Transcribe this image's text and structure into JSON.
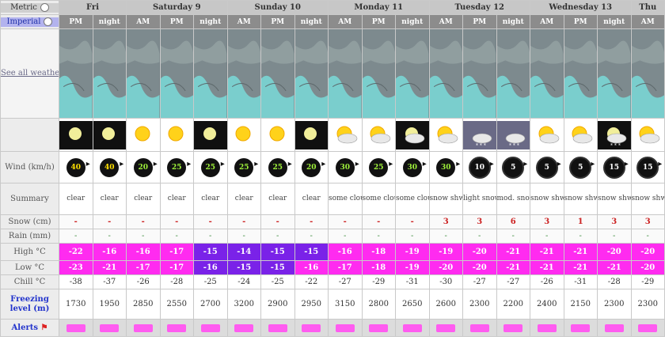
{
  "units": {
    "metric_label": "Metric",
    "imperial_label": "Imperial"
  },
  "days": [
    {
      "name": "Fri",
      "span": 2
    },
    {
      "name": "Saturday 9",
      "span": 3
    },
    {
      "name": "Sunday 10",
      "span": 3
    },
    {
      "name": "Monday 11",
      "span": 3
    },
    {
      "name": "Tuesday 12",
      "span": 3
    },
    {
      "name": "Wednesday 13",
      "span": 3
    },
    {
      "name": "Thu",
      "span": 1
    }
  ],
  "periods": [
    "PM",
    "night",
    "AM",
    "PM",
    "night",
    "AM",
    "PM",
    "night",
    "AM",
    "PM",
    "night",
    "AM",
    "PM",
    "night",
    "AM",
    "PM",
    "night",
    "AM"
  ],
  "see_all_maps": "See all weather maps",
  "labels": {
    "wind": "Wind (km/h)",
    "summary": "Summary",
    "snow": "Snow (cm)",
    "rain": "Rain (mm)",
    "high": "High °C",
    "low": "Low °C",
    "chill": "Chill °C",
    "freezing": "Freezing level (m)",
    "footer": "Alerts"
  },
  "icons": [
    "moon-icon",
    "moon-icon",
    "sun-icon",
    "sun-icon",
    "moon-icon",
    "sun-icon",
    "sun-icon",
    "moon-icon",
    "sun-cloud-icon",
    "sun-cloud-icon",
    "moon-cloud-icon",
    "sun-cloud-snow-icon",
    "cloud-snow-icon",
    "cloud-snow-icon",
    "sun-cloud-snow-icon",
    "sun-cloud-snow-icon",
    "moon-cloud-snow-icon",
    "sun-cloud-snow-icon"
  ],
  "wind": [
    "40",
    "40",
    "20",
    "25",
    "25",
    "25",
    "25",
    "20",
    "30",
    "25",
    "30",
    "30",
    "10",
    "5",
    "5",
    "5",
    "15",
    "15"
  ],
  "summary": [
    "clear",
    "clear",
    "clear",
    "clear",
    "clear",
    "clear",
    "clear",
    "clear",
    "some clouds",
    "some clouds",
    "some clouds",
    "snow shwrs",
    "light snow",
    "mod. snow",
    "snow shwrs",
    "snow shwrs",
    "snow shwrs",
    "snow shwrs"
  ],
  "snow": [
    "-",
    "-",
    "-",
    "-",
    "-",
    "-",
    "-",
    "-",
    "-",
    "-",
    "-",
    "3",
    "3",
    "6",
    "3",
    "1",
    "3",
    "3"
  ],
  "rain": [
    "-",
    "-",
    "-",
    "-",
    "-",
    "-",
    "-",
    "-",
    "-",
    "-",
    "-",
    "-",
    "-",
    "-",
    "-",
    "-",
    "-",
    "-"
  ],
  "high": [
    "-22",
    "-16",
    "-16",
    "-17",
    "-15",
    "-14",
    "-15",
    "-15",
    "-16",
    "-18",
    "-19",
    "-19",
    "-20",
    "-21",
    "-21",
    "-21",
    "-20",
    "-20"
  ],
  "low": [
    "-23",
    "-21",
    "-17",
    "-17",
    "-16",
    "-15",
    "-15",
    "-16",
    "-17",
    "-18",
    "-19",
    "-20",
    "-20",
    "-21",
    "-21",
    "-21",
    "-21",
    "-20"
  ],
  "chill": [
    "-38",
    "-37",
    "-26",
    "-28",
    "-25",
    "-24",
    "-25",
    "-22",
    "-27",
    "-29",
    "-31",
    "-30",
    "-27",
    "-27",
    "-26",
    "-31",
    "-28",
    "-29"
  ],
  "freezing": [
    "1730",
    "1950",
    "2850",
    "2550",
    "2700",
    "3200",
    "2900",
    "2950",
    "3150",
    "2800",
    "2650",
    "2600",
    "2300",
    "2200",
    "2400",
    "2150",
    "2300",
    "2300"
  ],
  "colors": {
    "high_purple_idx": [
      4,
      5,
      6,
      7
    ],
    "low_purple_idx": [
      4,
      5,
      6
    ]
  }
}
